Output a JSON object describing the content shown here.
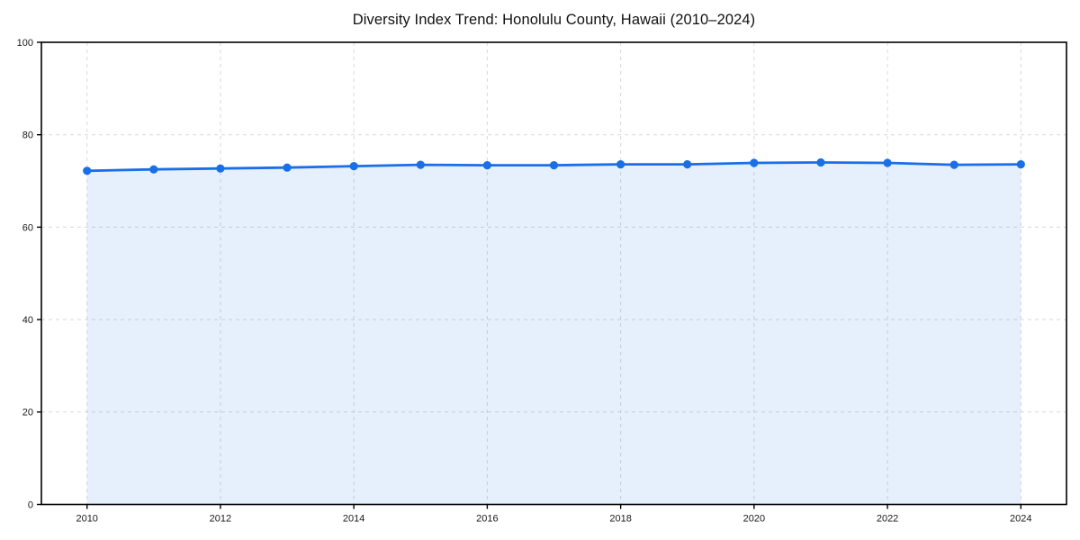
{
  "chart_data": {
    "type": "area",
    "title": "Diversity Index Trend: Honolulu County, Hawaii (2010–2024)",
    "xlabel": "",
    "ylabel": "",
    "x": [
      2010,
      2011,
      2012,
      2013,
      2014,
      2015,
      2016,
      2017,
      2018,
      2019,
      2020,
      2021,
      2022,
      2023,
      2024
    ],
    "series": [
      {
        "name": "Diversity Index",
        "values": [
          72.2,
          72.5,
          72.7,
          72.9,
          73.2,
          73.5,
          73.4,
          73.4,
          73.6,
          73.6,
          73.9,
          74.0,
          73.9,
          73.5,
          73.6
        ]
      }
    ],
    "ylim": [
      0,
      100
    ],
    "yticks": [
      0,
      20,
      40,
      60,
      80,
      100
    ],
    "xticks": [
      2010,
      2012,
      2014,
      2016,
      2018,
      2020,
      2022,
      2024
    ],
    "grid": true,
    "legend": "none",
    "colors": {
      "line": "#1a6ee8",
      "marker": "#1a6ee8",
      "fill": "#1a6ee8",
      "fill_opacity": 0.11,
      "grid": "#d9d9d9",
      "axis": "#000000",
      "tick_label": "#1a1a1a",
      "title": "#111111"
    }
  }
}
